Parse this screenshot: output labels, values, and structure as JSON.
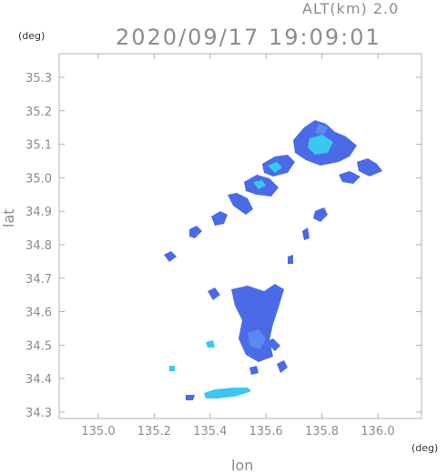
{
  "header": {
    "altitude": "ALT(km) 2.0",
    "timestamp": "2020/09/17 19:09:01"
  },
  "axes": {
    "y_unit": "(deg)",
    "x_unit": "(deg)",
    "y_label": "lat",
    "x_label": "lon",
    "y_ticks": [
      "35.3",
      "35.2",
      "35.1",
      "35.0",
      "34.9",
      "34.8",
      "34.7",
      "34.6",
      "34.5",
      "34.4",
      "34.3"
    ],
    "x_ticks": [
      "135.0",
      "135.2",
      "135.4",
      "135.6",
      "135.8",
      "136.0"
    ]
  },
  "map_data": {
    "type": "radar-echo",
    "lon_range": [
      134.89,
      136.17
    ],
    "lat_range": [
      34.28,
      35.35
    ],
    "colors": {
      "weak": "#4a6ae8",
      "moderate": "#5a8af0",
      "strong": "#38c8f0"
    }
  }
}
